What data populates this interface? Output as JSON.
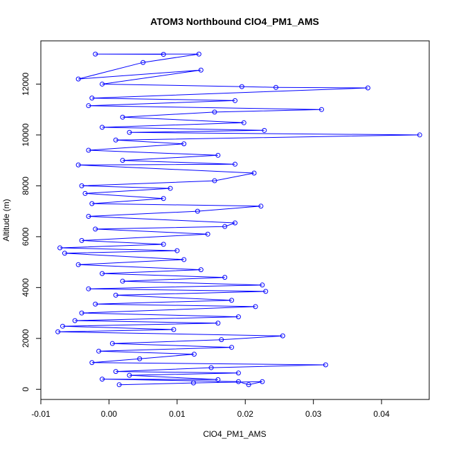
{
  "chart_data": {
    "type": "scatter",
    "title": "ATOM3 Northbound ClO4_PM1_AMS",
    "xlabel": "ClO4_PM1_AMS",
    "ylabel": "Altitude (m)",
    "xlim": [
      -0.01,
      0.047
    ],
    "ylim": [
      -400,
      13700
    ],
    "x_ticks": [
      -0.01,
      0.0,
      0.01,
      0.02,
      0.03,
      0.04
    ],
    "x_tick_labels": [
      "-0.01",
      "0.00",
      "0.01",
      "0.02",
      "0.03",
      "0.04"
    ],
    "y_ticks": [
      0,
      2000,
      4000,
      6000,
      8000,
      10000,
      12000
    ],
    "y_tick_labels": [
      "0",
      "2000",
      "4000",
      "6000",
      "8000",
      "10000",
      "12000"
    ],
    "grid": false,
    "legend": "none",
    "series_color": "#0000ff",
    "marker": "open-circle",
    "connected": true,
    "points": [
      {
        "x": 0.0015,
        "y": 180
      },
      {
        "x": 0.0124,
        "y": 250
      },
      {
        "x": 0.0225,
        "y": 300
      },
      {
        "x": 0.0205,
        "y": 180
      },
      {
        "x": 0.019,
        "y": 300
      },
      {
        "x": -0.001,
        "y": 400
      },
      {
        "x": 0.016,
        "y": 380
      },
      {
        "x": 0.003,
        "y": 550
      },
      {
        "x": 0.019,
        "y": 640
      },
      {
        "x": 0.001,
        "y": 700
      },
      {
        "x": 0.015,
        "y": 850
      },
      {
        "x": 0.0318,
        "y": 960
      },
      {
        "x": -0.0025,
        "y": 1050
      },
      {
        "x": 0.0045,
        "y": 1200
      },
      {
        "x": 0.0125,
        "y": 1380
      },
      {
        "x": -0.0015,
        "y": 1500
      },
      {
        "x": 0.018,
        "y": 1650
      },
      {
        "x": 0.0005,
        "y": 1800
      },
      {
        "x": 0.0165,
        "y": 1950
      },
      {
        "x": 0.0255,
        "y": 2100
      },
      {
        "x": -0.0075,
        "y": 2260
      },
      {
        "x": 0.0095,
        "y": 2350
      },
      {
        "x": -0.0068,
        "y": 2480
      },
      {
        "x": 0.016,
        "y": 2600
      },
      {
        "x": -0.005,
        "y": 2700
      },
      {
        "x": 0.019,
        "y": 2850
      },
      {
        "x": -0.004,
        "y": 3000
      },
      {
        "x": 0.0215,
        "y": 3250
      },
      {
        "x": -0.002,
        "y": 3350
      },
      {
        "x": 0.018,
        "y": 3500
      },
      {
        "x": 0.001,
        "y": 3700
      },
      {
        "x": 0.023,
        "y": 3850
      },
      {
        "x": -0.003,
        "y": 3950
      },
      {
        "x": 0.0225,
        "y": 4100
      },
      {
        "x": 0.002,
        "y": 4250
      },
      {
        "x": 0.017,
        "y": 4400
      },
      {
        "x": -0.001,
        "y": 4550
      },
      {
        "x": 0.0135,
        "y": 4700
      },
      {
        "x": -0.0045,
        "y": 4900
      },
      {
        "x": 0.011,
        "y": 5100
      },
      {
        "x": -0.0065,
        "y": 5350
      },
      {
        "x": 0.01,
        "y": 5450
      },
      {
        "x": -0.0072,
        "y": 5560
      },
      {
        "x": 0.008,
        "y": 5700
      },
      {
        "x": -0.004,
        "y": 5850
      },
      {
        "x": 0.0145,
        "y": 6100
      },
      {
        "x": -0.002,
        "y": 6300
      },
      {
        "x": 0.017,
        "y": 6400
      },
      {
        "x": 0.0185,
        "y": 6540
      },
      {
        "x": -0.003,
        "y": 6800
      },
      {
        "x": 0.013,
        "y": 7000
      },
      {
        "x": 0.0223,
        "y": 7200
      },
      {
        "x": -0.0025,
        "y": 7300
      },
      {
        "x": 0.008,
        "y": 7500
      },
      {
        "x": -0.0035,
        "y": 7700
      },
      {
        "x": 0.009,
        "y": 7900
      },
      {
        "x": -0.004,
        "y": 8000
      },
      {
        "x": 0.0155,
        "y": 8200
      },
      {
        "x": 0.0213,
        "y": 8500
      },
      {
        "x": -0.0045,
        "y": 8820
      },
      {
        "x": 0.0185,
        "y": 8850
      },
      {
        "x": 0.002,
        "y": 9000
      },
      {
        "x": 0.016,
        "y": 9200
      },
      {
        "x": -0.003,
        "y": 9400
      },
      {
        "x": 0.011,
        "y": 9650
      },
      {
        "x": 0.001,
        "y": 9800
      },
      {
        "x": 0.0456,
        "y": 10000
      },
      {
        "x": 0.003,
        "y": 10100
      },
      {
        "x": 0.0228,
        "y": 10180
      },
      {
        "x": -0.001,
        "y": 10300
      },
      {
        "x": 0.0198,
        "y": 10480
      },
      {
        "x": 0.002,
        "y": 10700
      },
      {
        "x": 0.0155,
        "y": 10900
      },
      {
        "x": 0.0312,
        "y": 11000
      },
      {
        "x": -0.003,
        "y": 11150
      },
      {
        "x": 0.0185,
        "y": 11350
      },
      {
        "x": -0.0025,
        "y": 11450
      },
      {
        "x": 0.038,
        "y": 11850
      },
      {
        "x": 0.0245,
        "y": 11870
      },
      {
        "x": 0.0195,
        "y": 11900
      },
      {
        "x": -0.001,
        "y": 12000
      },
      {
        "x": 0.0135,
        "y": 12550
      },
      {
        "x": -0.0045,
        "y": 12200
      },
      {
        "x": 0.005,
        "y": 12850
      },
      {
        "x": 0.0132,
        "y": 13180
      },
      {
        "x": -0.002,
        "y": 13180
      },
      {
        "x": 0.008,
        "y": 13170
      }
    ]
  }
}
